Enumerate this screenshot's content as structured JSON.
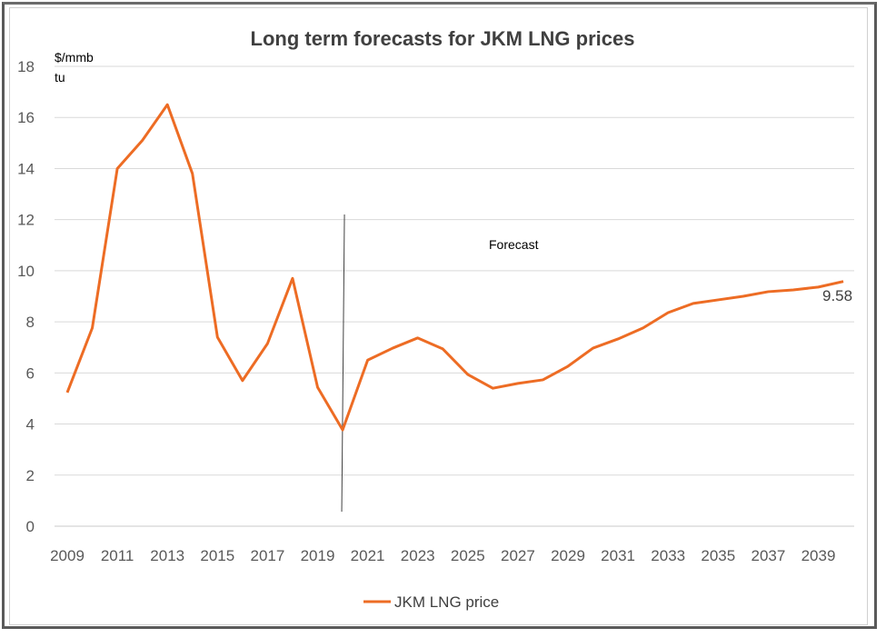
{
  "chart_data": {
    "type": "line",
    "title": "Long term forecasts for JKM LNG prices",
    "ylabel_line1": "$/mmb",
    "ylabel_line2": "tu",
    "ylim": [
      0,
      18
    ],
    "yticks": [
      0,
      2,
      4,
      6,
      8,
      10,
      12,
      14,
      16,
      18
    ],
    "x": [
      2009,
      2010,
      2011,
      2012,
      2013,
      2014,
      2015,
      2016,
      2017,
      2018,
      2019,
      2020,
      2021,
      2022,
      2023,
      2024,
      2025,
      2026,
      2027,
      2028,
      2029,
      2030,
      2031,
      2032,
      2033,
      2034,
      2035,
      2036,
      2037,
      2038,
      2039,
      2040
    ],
    "xtick_labels": [
      "2009",
      "2011",
      "2013",
      "2015",
      "2017",
      "2019",
      "2021",
      "2023",
      "2025",
      "2027",
      "2029",
      "2031",
      "2033",
      "2035",
      "2037",
      "2039"
    ],
    "series": [
      {
        "name": "JKM LNG price",
        "color": "#ED6C24",
        "values": [
          5.23,
          7.76,
          14.0,
          15.1,
          16.5,
          13.8,
          7.4,
          5.7,
          7.15,
          9.7,
          5.44,
          3.77,
          6.5,
          6.97,
          7.37,
          6.94,
          5.94,
          5.4,
          5.59,
          5.73,
          6.26,
          6.97,
          7.33,
          7.76,
          8.36,
          8.72,
          8.86,
          9.0,
          9.18,
          9.25,
          9.36,
          9.58
        ]
      }
    ],
    "data_label": "9.58",
    "annotation": "Forecast",
    "forecast_divider_year": 2020,
    "legend_position": "bottom",
    "grid": true
  }
}
